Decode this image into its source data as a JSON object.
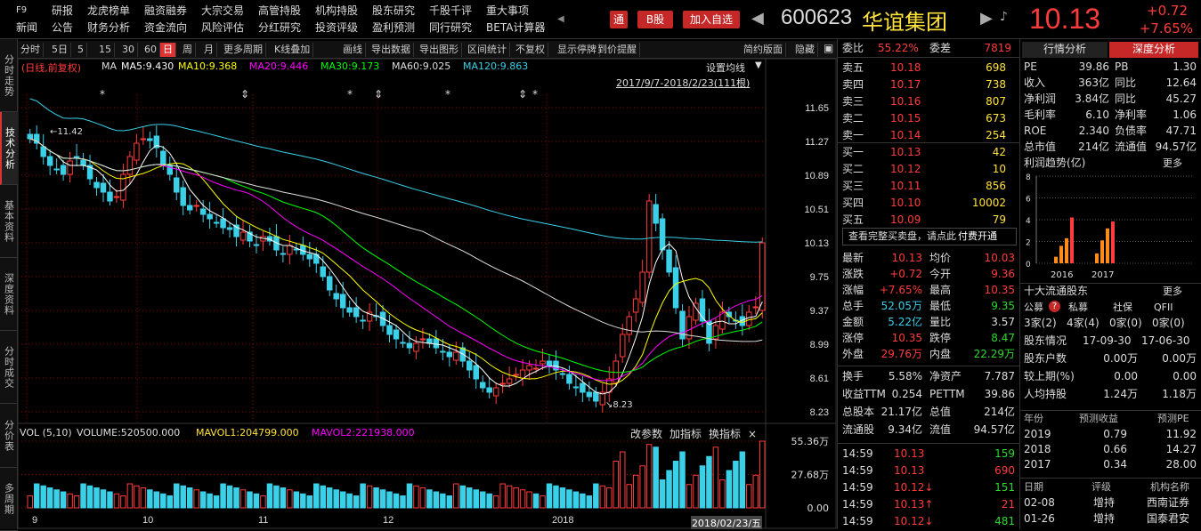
{
  "topbar": {
    "row1": [
      "F9",
      "研报",
      "龙虎榜单",
      "融资融券",
      "大宗交易",
      "高管持股",
      "机构持股",
      "股东研究",
      "千股千评",
      "重大事项"
    ],
    "row2": [
      "新闻",
      "公告",
      "财务分析",
      "资金流向",
      "风险评估",
      "分红研究",
      "投资评级",
      "盈利预测",
      "同行研究",
      "BETA计算器"
    ],
    "btn_tong": "通",
    "btn_bshare": "B股",
    "btn_watch": "加入自选",
    "code": "600623",
    "name": "华谊集团",
    "price": "10.13",
    "change": "+0.72",
    "change_pct": "+7.65%"
  },
  "leftnav": [
    "分时走势",
    "技术分析",
    "基本资料",
    "深度资料",
    "分时成交",
    "分价表",
    "多周期"
  ],
  "toolbar": {
    "items": [
      "分时",
      "5日",
      "5",
      "15",
      "30",
      "60",
      "日",
      "周",
      "月",
      "更多周期",
      "K线叠加",
      "画线",
      "导出数据",
      "导出图形",
      "区间统计",
      "不复权",
      "显示停牌",
      "到价提醒"
    ],
    "right": [
      "简约版面",
      "隐藏"
    ]
  },
  "legend": {
    "prefix": "(日线,前复权)",
    "ma_label": "MA",
    "ma5": "MA5:9.430",
    "ma10": "MA10:9.368",
    "ma20": "MA20:9.446",
    "ma30": "MA30:9.173",
    "ma60": "MA60:9.025",
    "ma120": "MA120:9.863",
    "settings": "设置均线",
    "range": "2017/9/7-2018/2/23(111根)",
    "hi_mark": "11.42",
    "lo_mark": "8.23"
  },
  "chart_data": {
    "type": "candlestick",
    "y_ticks": [
      "11.65",
      "11.27",
      "10.89",
      "10.51",
      "10.13",
      "9.75",
      "9.37",
      "8.99",
      "8.61",
      "8.23"
    ],
    "x_ticks": [
      "9",
      "10",
      "11",
      "12",
      "2018"
    ],
    "ylim": [
      8.1,
      11.8
    ],
    "closes": [
      11.3,
      11.25,
      11.1,
      11.0,
      10.95,
      10.9,
      11.05,
      11.1,
      11.0,
      10.85,
      10.75,
      10.7,
      10.6,
      10.65,
      10.9,
      11.1,
      11.25,
      11.3,
      11.28,
      11.2,
      11.0,
      10.9,
      10.7,
      10.55,
      10.5,
      10.55,
      10.45,
      10.4,
      10.35,
      10.3,
      10.28,
      10.2,
      10.25,
      10.15,
      10.1,
      10.2,
      10.15,
      10.05,
      10.0,
      10.1,
      10.05,
      10.0,
      9.95,
      9.9,
      9.75,
      9.6,
      9.5,
      9.4,
      9.35,
      9.3,
      9.25,
      9.35,
      9.3,
      9.2,
      9.1,
      9.05,
      9.0,
      8.95,
      9.0,
      9.05,
      9.0,
      8.95,
      8.9,
      8.85,
      8.9,
      8.8,
      8.7,
      8.6,
      8.5,
      8.45,
      8.5,
      8.55,
      8.6,
      8.65,
      8.7,
      8.75,
      8.72,
      8.8,
      8.75,
      8.7,
      8.65,
      8.55,
      8.5,
      8.45,
      8.4,
      8.35,
      8.45,
      8.6,
      8.8,
      9.1,
      9.3,
      9.5,
      9.8,
      10.6,
      10.35,
      10.05,
      9.8,
      9.4,
      9.05,
      9.3,
      9.45,
      9.25,
      9.0,
      9.2,
      9.35,
      9.3,
      9.25,
      9.2,
      9.35,
      9.41,
      10.13
    ],
    "ma_series": [
      {
        "name": "MA5",
        "color": "#ffffff"
      },
      {
        "name": "MA10",
        "color": "#ffff00"
      },
      {
        "name": "MA20",
        "color": "#ff00ff"
      },
      {
        "name": "MA30",
        "color": "#00ff00"
      },
      {
        "name": "MA60",
        "color": "#dddddd"
      },
      {
        "name": "MA120",
        "color": "#3ad0e8"
      }
    ],
    "volume": {
      "label": "VOL (5,10)",
      "vol": "VOLUME:520500.000",
      "mavol1": "MAVOL1:204799.000",
      "mavol2": "MAVOL2:221938.000",
      "y_ticks": [
        "55.36万",
        "27.68万",
        "0.00"
      ],
      "max": 553600
    }
  },
  "volume_actions": [
    "改参数",
    "加指标",
    "换指标",
    "×"
  ],
  "cursor_date": "2018/02/23/五",
  "quote": {
    "weibi_label": "委比",
    "weibi": "55.22%",
    "weicha_label": "委差",
    "weicha": "7819",
    "sell": [
      [
        "卖五",
        "10.18",
        "698"
      ],
      [
        "卖四",
        "10.17",
        "738"
      ],
      [
        "卖三",
        "10.16",
        "807"
      ],
      [
        "卖二",
        "10.15",
        "673"
      ],
      [
        "卖一",
        "10.14",
        "254"
      ]
    ],
    "buy": [
      [
        "买一",
        "10.13",
        "42"
      ],
      [
        "买二",
        "10.12",
        "10"
      ],
      [
        "买三",
        "10.11",
        "856"
      ],
      [
        "买四",
        "10.10",
        "10002"
      ],
      [
        "买五",
        "10.09",
        "79"
      ]
    ],
    "full_book": "查看完整买卖盘，请点此",
    "paid": "付费开通",
    "stats": [
      [
        "最新",
        "10.13",
        "均价",
        "10.03"
      ],
      [
        "涨跌",
        "+0.72",
        "今开",
        "9.36"
      ],
      [
        "涨幅",
        "+7.65%",
        "最高",
        "10.35"
      ],
      [
        "总手",
        "52.05万",
        "最低",
        "9.35"
      ],
      [
        "金额",
        "5.22亿",
        "量比",
        "3.57"
      ],
      [
        "涨停",
        "10.35",
        "跌停",
        "8.47"
      ],
      [
        "外盘",
        "29.76万",
        "内盘",
        "22.29万"
      ]
    ],
    "stats2": [
      [
        "换手",
        "5.58%",
        "净资产",
        "7.787"
      ],
      [
        "收益TTM",
        "0.254",
        "PETTM",
        "39.86"
      ],
      [
        "总股本",
        "21.17亿",
        "总值",
        "214亿"
      ],
      [
        "流通股",
        "9.34亿",
        "流值",
        "94.57亿"
      ]
    ],
    "ticks": [
      [
        "14:59",
        "10.13",
        "159"
      ],
      [
        "14:59",
        "10.13",
        "690"
      ],
      [
        "14:59",
        "10.12↓",
        "151"
      ],
      [
        "14:59",
        "10.13↑",
        "21"
      ],
      [
        "14:59",
        "10.12↓",
        "481"
      ]
    ]
  },
  "deep": {
    "tab1": "行情分析",
    "tab2": "深度分析",
    "pe_label": "PE",
    "pe": "39.86",
    "pb_label": "PB",
    "pb": "1.30",
    "rows": [
      [
        "收入",
        "363亿",
        "同比",
        "12.64"
      ],
      [
        "净利润",
        "3.84亿",
        "同比",
        "45.27"
      ],
      [
        "毛利率",
        "6.10",
        "净利率",
        "1.06"
      ],
      [
        "ROE",
        "2.340",
        "负债率",
        "47.71"
      ],
      [
        "总市值",
        "214亿",
        "流通值",
        "94.57亿"
      ]
    ],
    "trend_label": "利润趋势(亿)",
    "more": "更多",
    "trend_y": [
      "8",
      "6",
      "4",
      "2",
      "0"
    ],
    "trend_x": [
      "2016",
      "2017"
    ],
    "trend_values": [
      [
        0.6,
        1.6,
        2.3,
        4.2
      ],
      [
        0.9,
        2.1,
        3.2,
        3.84
      ]
    ],
    "holders_title": "十大流通股东",
    "holders_more": "更多",
    "holder_heads": [
      "公募",
      "私募",
      "社保",
      "QFII"
    ],
    "holder_vals": [
      "3家(2)",
      "4家(4)",
      "0家(0)",
      "0家(0)"
    ],
    "holder_dates": [
      "股东情况",
      "17-09-30",
      "17-06-30"
    ],
    "holder_rows": [
      [
        "股东户数",
        "0.00万",
        "0.00万"
      ],
      [
        "较上期(%)",
        "0.00",
        "0.00"
      ],
      [
        "人均持股",
        "1.24万",
        "1.18万"
      ]
    ],
    "eps_heads": [
      "年份",
      "预测收益",
      "预测PE"
    ],
    "eps_rows": [
      [
        "2019",
        "0.79",
        "11.92"
      ],
      [
        "2018",
        "0.66",
        "14.27"
      ],
      [
        "2017",
        "0.34",
        "28.00"
      ]
    ],
    "rating_heads": [
      "日期",
      "评级",
      "机构名称"
    ],
    "rating_rows": [
      [
        "02-08",
        "增持",
        "西南证券"
      ],
      [
        "01-26",
        "增持",
        "国泰君安"
      ]
    ]
  }
}
